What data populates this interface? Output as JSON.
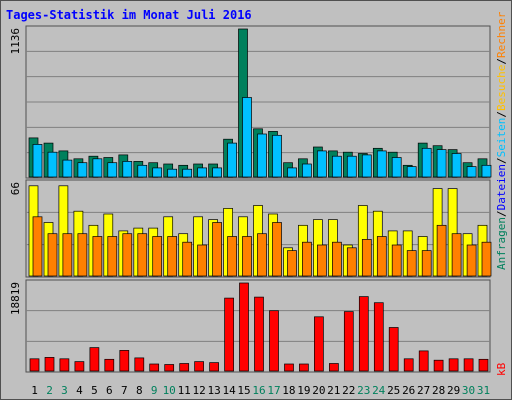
{
  "title": "Tages-Statistik im Monat Juli 2016",
  "colors": {
    "frame_bg": "#c0c0c0",
    "border": "#505050",
    "panel_bg": "#c0c0c0",
    "grid": "#808080",
    "title": "#0000ff",
    "hits": "#00805c",
    "files": "#00c0ff",
    "pages": "#ffff00",
    "visits": "#ff8000",
    "kbytes": "#ff0000",
    "weekday": "#000000",
    "weekend": "#00805c"
  },
  "right_labels": {
    "top": [
      {
        "text": "Anfragen",
        "color": "#00805c"
      },
      {
        "text": "/",
        "color": "#000000"
      },
      {
        "text": "Dateien",
        "color": "#0000ff"
      },
      {
        "text": "/",
        "color": "#000000"
      },
      {
        "text": "Seiten",
        "color": "#00c0ff"
      },
      {
        "text": "/",
        "color": "#000000"
      },
      {
        "text": "Besuche",
        "color": "#ffc000"
      },
      {
        "text": "/",
        "color": "#000000"
      },
      {
        "text": "Rechner",
        "color": "#ff8000"
      }
    ],
    "bottom": {
      "text": "kB",
      "color": "#ff0000"
    }
  },
  "chart_data": {
    "type": "bar",
    "title": "Tages-Statistik im Monat Juli 2016",
    "days": [
      "1",
      "2",
      "3",
      "4",
      "5",
      "6",
      "7",
      "8",
      "9",
      "10",
      "11",
      "12",
      "13",
      "14",
      "15",
      "16",
      "17",
      "18",
      "19",
      "20",
      "21",
      "22",
      "23",
      "24",
      "25",
      "26",
      "27",
      "28",
      "29",
      "30",
      "31"
    ],
    "weekend_days": [
      "2",
      "3",
      "9",
      "10",
      "16",
      "17",
      "23",
      "24",
      "30",
      "31"
    ],
    "panels": [
      {
        "id": "hits-files",
        "ymax_label": "1136",
        "ymax": 1136,
        "series": [
          {
            "name": "Anfragen",
            "values": [
              300,
              260,
              200,
              140,
              160,
              150,
              170,
              120,
              110,
              100,
              90,
              100,
              100,
              290,
              1136,
              370,
              350,
              110,
              140,
              230,
              200,
              190,
              180,
              220,
              190,
              90,
              260,
              240,
              210,
              110,
              140
            ]
          },
          {
            "name": "Dateien",
            "values": [
              250,
              190,
              130,
              110,
              140,
              110,
              120,
              90,
              70,
              60,
              60,
              70,
              70,
              260,
              610,
              330,
              320,
              70,
              100,
              200,
              160,
              160,
              170,
              200,
              150,
              80,
              220,
              210,
              180,
              80,
              90
            ]
          }
        ]
      },
      {
        "id": "pages-visits",
        "ymax_label": "66",
        "ymax": 66,
        "series": [
          {
            "name": "Seiten",
            "values": [
              64,
              38,
              64,
              46,
              36,
              44,
              32,
              34,
              34,
              42,
              30,
              42,
              40,
              48,
              42,
              50,
              44,
              20,
              36,
              40,
              40,
              22,
              50,
              46,
              32,
              32,
              28,
              62,
              62,
              30,
              36
            ]
          },
          {
            "name": "Besuche",
            "values": [
              42,
              30,
              30,
              30,
              28,
              28,
              30,
              30,
              28,
              28,
              24,
              22,
              38,
              28,
              28,
              30,
              38,
              18,
              24,
              22,
              24,
              20,
              26,
              28,
              22,
              18,
              18,
              36,
              30,
              22,
              24
            ]
          }
        ]
      },
      {
        "id": "kbytes",
        "ymax_label": "18819",
        "ymax": 18819,
        "series": [
          {
            "name": "kB",
            "values": [
              2600,
              2900,
              2600,
              2000,
              5000,
              2500,
              4400,
              2800,
              1500,
              1400,
              1600,
              2000,
              1800,
              15600,
              18819,
              15800,
              12900,
              1500,
              1500,
              11600,
              1600,
              12700,
              15900,
              14600,
              9300,
              2600,
              4300,
              2300,
              2600,
              2600,
              2500
            ]
          }
        ]
      }
    ]
  }
}
